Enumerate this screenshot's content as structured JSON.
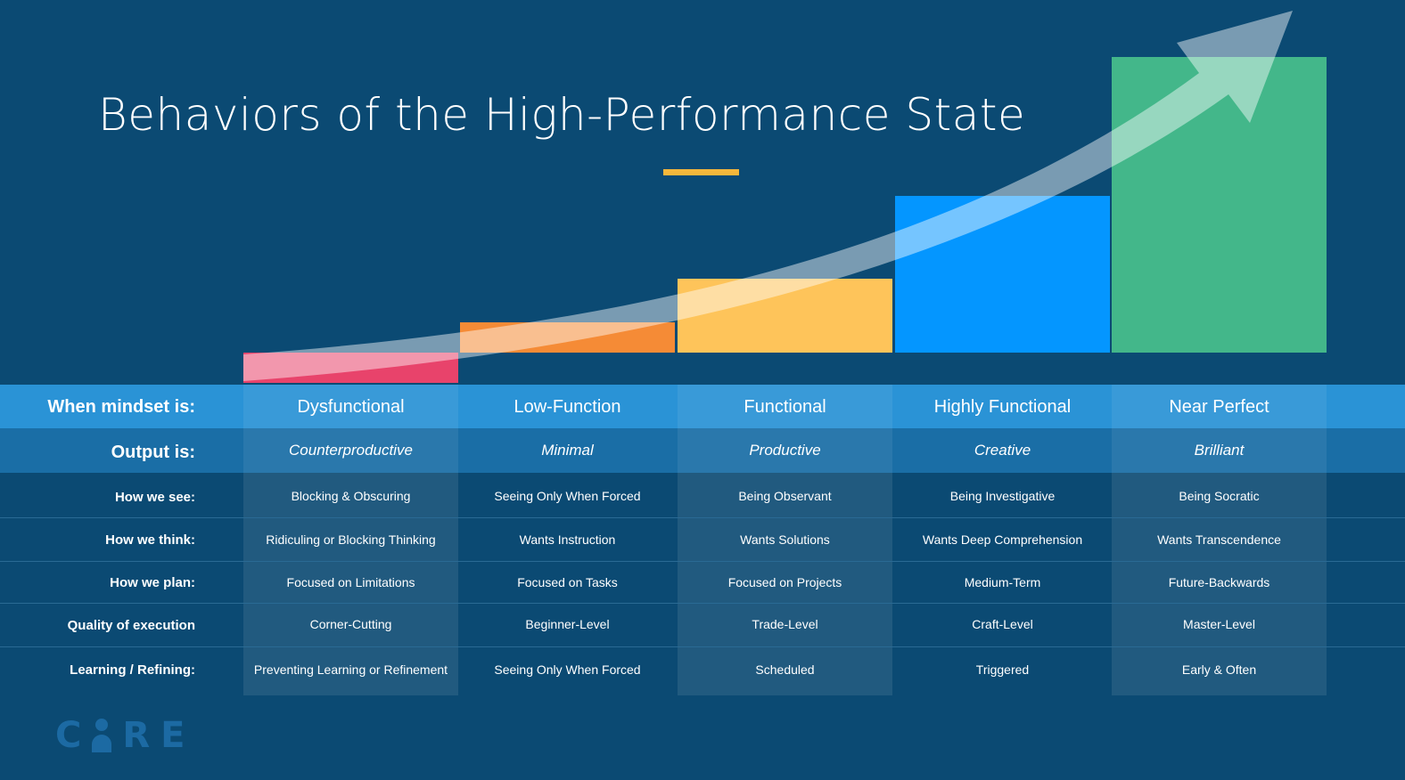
{
  "title": "Behaviors of the High-Performance State",
  "colors": {
    "background": "#0b4a73",
    "accent": "#f5b73b",
    "step1": "#e8436b",
    "step2": "#f58b36",
    "step3": "#fec45a",
    "step4": "#0496ff",
    "step5": "#43b78a"
  },
  "rows": {
    "mindset_label": "When mindset is:",
    "output_label": "Output is:",
    "see_label": "How we see:",
    "think_label": "How we think:",
    "plan_label": "How we plan:",
    "quality_label": "Quality of execution",
    "learning_label": "Learning / Refining:"
  },
  "columns": [
    {
      "mindset": "Dysfunctional",
      "output": "Counterproductive",
      "see": "Blocking & Obscuring",
      "think": "Ridiculing or Blocking Thinking",
      "plan": "Focused on Limitations",
      "quality": "Corner-Cutting",
      "learning": "Preventing Learning or Refinement"
    },
    {
      "mindset": "Low-Function",
      "output": "Minimal",
      "see": "Seeing Only When Forced",
      "think": "Wants Instruction",
      "plan": "Focused on Tasks",
      "quality": "Beginner-Level",
      "learning": "Seeing Only When Forced"
    },
    {
      "mindset": "Functional",
      "output": "Productive",
      "see": "Being Observant",
      "think": "Wants Solutions",
      "plan": "Focused on Projects",
      "quality": "Trade-Level",
      "learning": "Scheduled"
    },
    {
      "mindset": "Highly Functional",
      "output": "Creative",
      "see": "Being Investigative",
      "think": "Wants Deep Comprehension",
      "plan": "Medium-Term",
      "quality": "Craft-Level",
      "learning": "Triggered"
    },
    {
      "mindset": "Near Perfect",
      "output": "Brilliant",
      "see": "Being Socratic",
      "think": "Wants Transcendence",
      "plan": "Future-Backwards",
      "quality": "Master-Level",
      "learning": "Early & Often"
    }
  ],
  "logo": {
    "text": "CORE",
    "letters": [
      "C",
      "R",
      "E"
    ]
  }
}
